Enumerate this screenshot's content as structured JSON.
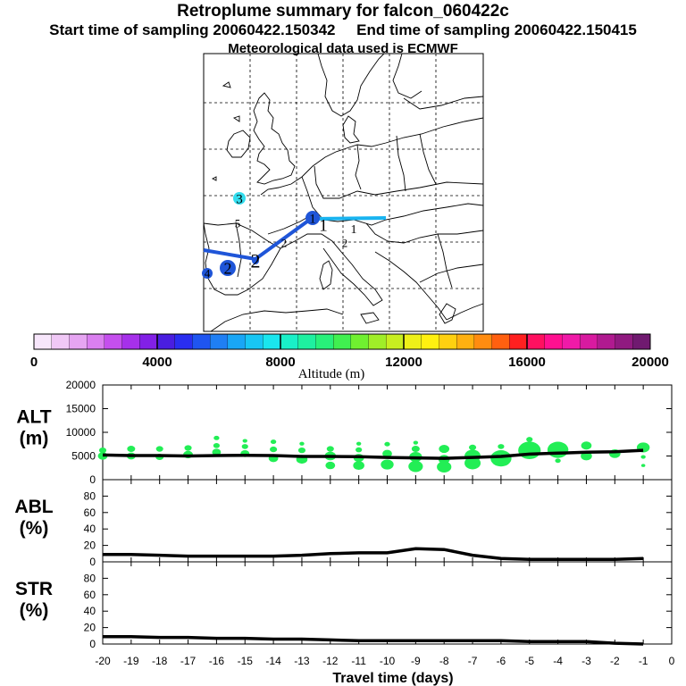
{
  "header": {
    "title": "Retroplume summary for falcon_060422c",
    "start_label": "Start time of sampling 20060422.150342",
    "end_label": "End time of sampling 20060422.150415",
    "met_label": "Meteorological data used is ECMWF"
  },
  "colors": {
    "track_dark": "#1f55d8",
    "track_light": "#19b4f0",
    "cluster_green": "#22ee55",
    "line": "#000000"
  },
  "map": {
    "markers": [
      {
        "label": "3",
        "color": "#33ddee"
      },
      {
        "label": "5",
        "color": "#9933ff"
      },
      {
        "label": "1",
        "color": "#1f55d8"
      },
      {
        "label": "1",
        "color": "#1f55d8"
      },
      {
        "label": "1",
        "color": "#19b4f0"
      },
      {
        "label": "2",
        "color": "#19b4f0"
      },
      {
        "label": "2",
        "color": "#1f55d8"
      },
      {
        "label": "2",
        "color": "#1f55d8"
      },
      {
        "label": "2",
        "color": "#1f55d8"
      },
      {
        "label": "4",
        "color": "#1f55d8"
      }
    ]
  },
  "colorbar": {
    "ticks": [
      "0",
      "4000",
      "8000",
      "12000",
      "16000",
      "20000"
    ],
    "label": "Altitude (m)",
    "colors": [
      "#f7e6fb",
      "#f0c8f6",
      "#e6a5f2",
      "#da7ff0",
      "#c54fee",
      "#a630ea",
      "#8220e6",
      "#4a1ee0",
      "#2a2ef0",
      "#1f55f0",
      "#1f7ff4",
      "#19a6f6",
      "#18c6f4",
      "#1ae6ee",
      "#19f0c8",
      "#1ef0a0",
      "#28f07a",
      "#40f050",
      "#70f030",
      "#a0ee28",
      "#c8ee20",
      "#eef018",
      "#fff010",
      "#ffd010",
      "#ffb010",
      "#ff8c10",
      "#ff6010",
      "#ff2020",
      "#ff1060",
      "#ff1090",
      "#f01aa8",
      "#d81aa0",
      "#b01a90",
      "#901a80",
      "#701a70"
    ]
  },
  "chart_data": {
    "type": "line",
    "x": [
      -20,
      -19,
      -18,
      -17,
      -16,
      -15,
      -14,
      -13,
      -12,
      -11,
      -10,
      -9,
      -8,
      -7,
      -6,
      -5,
      -4,
      -3,
      -2,
      -1
    ],
    "x_ticks": [
      "-20",
      "-19",
      "-18",
      "-17",
      "-16",
      "-15",
      "-14",
      "-13",
      "-12",
      "-11",
      "-10",
      "-9",
      "-8",
      "-7",
      "-6",
      "-5",
      "-4",
      "-3",
      "-2",
      "-1",
      "0"
    ],
    "xlim": [
      -20,
      0
    ],
    "xlabel": "Travel time (days)",
    "panels": [
      {
        "name": "ALT",
        "label_line1": "ALT",
        "label_line2": "(m)",
        "ylim": [
          0,
          20000
        ],
        "y_ticks": [
          "0",
          "5000",
          "10000",
          "15000",
          "20000"
        ],
        "series": [
          5200,
          5100,
          5100,
          5000,
          5100,
          5150,
          5100,
          4900,
          4900,
          4850,
          4700,
          4600,
          4500,
          4700,
          4900,
          5400,
          5600,
          5800,
          5900,
          6200
        ],
        "clusters": [
          [
            -20,
            5000,
            0.6
          ],
          [
            -20,
            6200,
            0.45
          ],
          [
            -19,
            5000,
            0.55
          ],
          [
            -19,
            6500,
            0.5
          ],
          [
            -18,
            4800,
            0.5
          ],
          [
            -18,
            6500,
            0.45
          ],
          [
            -17,
            5300,
            0.6
          ],
          [
            -17,
            6700,
            0.45
          ],
          [
            -16,
            5800,
            0.55
          ],
          [
            -16,
            7200,
            0.4
          ],
          [
            -16,
            8800,
            0.35
          ],
          [
            -15,
            5500,
            0.55
          ],
          [
            -15,
            7000,
            0.4
          ],
          [
            -15,
            8200,
            0.3
          ],
          [
            -14,
            4500,
            0.6
          ],
          [
            -14,
            6400,
            0.45
          ],
          [
            -14,
            8000,
            0.35
          ],
          [
            -13,
            4300,
            0.7
          ],
          [
            -13,
            6200,
            0.45
          ],
          [
            -13,
            7600,
            0.3
          ],
          [
            -12,
            3000,
            0.6
          ],
          [
            -12,
            5000,
            0.7
          ],
          [
            -12,
            6500,
            0.45
          ],
          [
            -11,
            3000,
            0.7
          ],
          [
            -11,
            4600,
            0.65
          ],
          [
            -11,
            6300,
            0.4
          ],
          [
            -11,
            7600,
            0.3
          ],
          [
            -10,
            3200,
            0.8
          ],
          [
            -10,
            5500,
            0.6
          ],
          [
            -10,
            7500,
            0.35
          ],
          [
            -9,
            2800,
            0.9
          ],
          [
            -9,
            4800,
            0.8
          ],
          [
            -9,
            6500,
            0.5
          ],
          [
            -9,
            7800,
            0.3
          ],
          [
            -8,
            2700,
            0.9
          ],
          [
            -8,
            4300,
            0.7
          ],
          [
            -8,
            6500,
            0.65
          ],
          [
            -7,
            3500,
            1.0
          ],
          [
            -7,
            5000,
            1.0
          ],
          [
            -7,
            6800,
            0.45
          ],
          [
            -6,
            4500,
            1.3
          ],
          [
            -6,
            7000,
            0.4
          ],
          [
            -5,
            6200,
            1.4
          ],
          [
            -5,
            8500,
            0.4
          ],
          [
            -4,
            6300,
            1.3
          ],
          [
            -4,
            4000,
            0.35
          ],
          [
            -3,
            5000,
            0.7
          ],
          [
            -3,
            7200,
            0.65
          ],
          [
            -2,
            5500,
            0.7
          ],
          [
            -1,
            6800,
            0.8
          ],
          [
            -1,
            4800,
            0.3
          ],
          [
            -1,
            3000,
            0.25
          ]
        ]
      },
      {
        "name": "ABL",
        "label_line1": "ABL",
        "label_line2": "(%)",
        "ylim": [
          0,
          100
        ],
        "y_ticks": [
          "0",
          "20",
          "40",
          "60",
          "80"
        ],
        "series": [
          9,
          9,
          8,
          7,
          7,
          7,
          7,
          8,
          10,
          11,
          11,
          16,
          15,
          8,
          4,
          3,
          3,
          3,
          3,
          4
        ]
      },
      {
        "name": "STR",
        "label_line1": "STR",
        "label_line2": "(%)",
        "ylim": [
          0,
          100
        ],
        "y_ticks": [
          "0",
          "20",
          "40",
          "60",
          "80"
        ],
        "series": [
          9,
          9,
          8,
          8,
          7,
          7,
          6,
          6,
          5,
          4,
          4,
          4,
          4,
          4,
          4,
          3,
          3,
          3,
          1,
          0
        ]
      }
    ]
  }
}
